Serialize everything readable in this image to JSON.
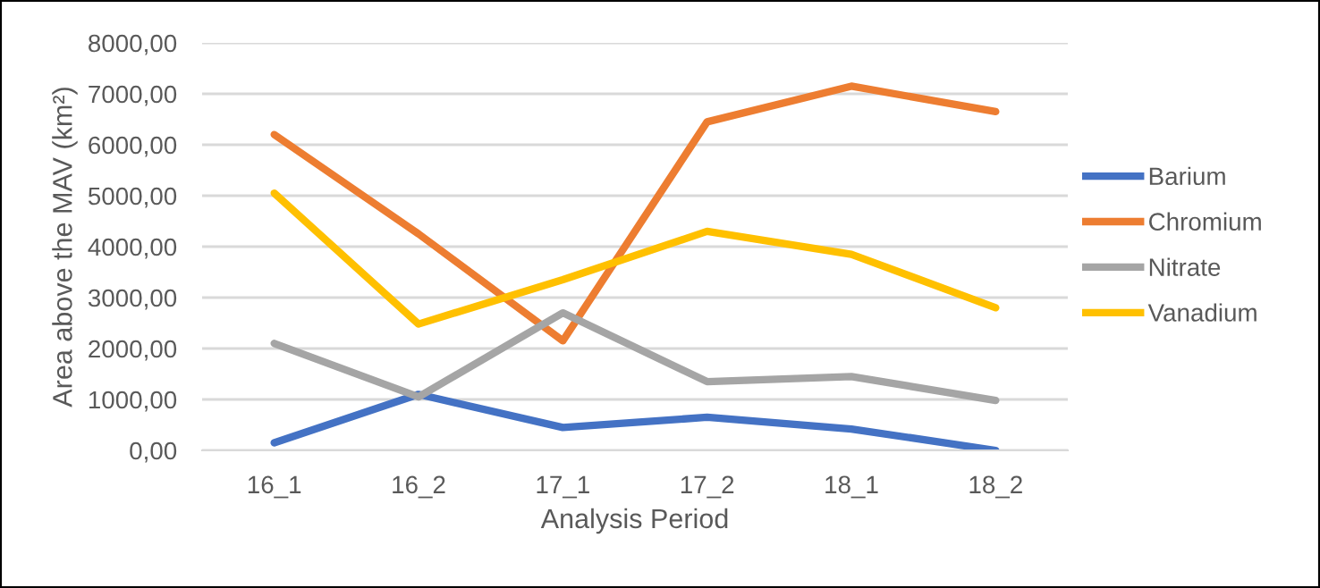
{
  "chart_data": {
    "type": "line",
    "xlabel": "Analysis Period",
    "ylabel": "Area above the MAV (km²)",
    "categories": [
      "16_1",
      "16_2",
      "17_1",
      "17_2",
      "18_1",
      "18_2"
    ],
    "series": [
      {
        "name": "Barium",
        "color": "#4472c4",
        "values": [
          150,
          1100,
          450,
          650,
          420,
          0
        ]
      },
      {
        "name": "Chromium",
        "color": "#ed7d31",
        "values": [
          6200,
          4250,
          2150,
          6450,
          7150,
          6650
        ]
      },
      {
        "name": "Nitrate",
        "color": "#a5a5a5",
        "values": [
          2100,
          1050,
          2700,
          1350,
          1450,
          980
        ]
      },
      {
        "name": "Vanadium",
        "color": "#ffc000",
        "values": [
          5050,
          2480,
          3350,
          4300,
          3850,
          2800
        ]
      }
    ],
    "ylim": [
      0,
      8000
    ],
    "yticks": [
      {
        "value": 0,
        "label": "0,00"
      },
      {
        "value": 1000,
        "label": "1000,00"
      },
      {
        "value": 2000,
        "label": "2000,00"
      },
      {
        "value": 3000,
        "label": "3000,00"
      },
      {
        "value": 4000,
        "label": "4000,00"
      },
      {
        "value": 5000,
        "label": "5000,00"
      },
      {
        "value": 6000,
        "label": "6000,00"
      },
      {
        "value": 7000,
        "label": "7000,00"
      },
      {
        "value": 8000,
        "label": "8000,00"
      }
    ],
    "grid": "y",
    "legend": "right",
    "marker": "none",
    "line_style": "solid"
  }
}
